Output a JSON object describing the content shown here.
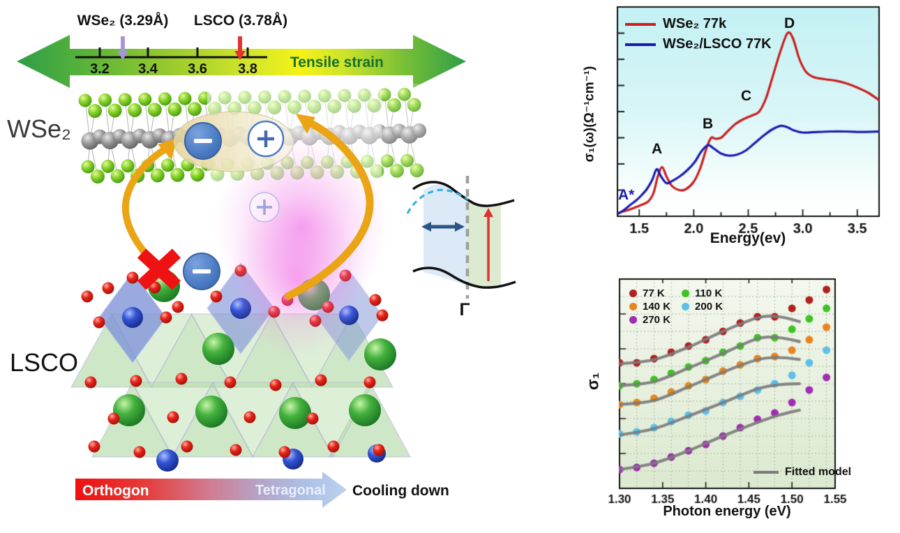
{
  "panel": {
    "strain_scale": {
      "wse2_label": "WSe₂  (3.29Å)",
      "lsco_label": "LSCO  (3.78Å)",
      "title": "Tensile strain",
      "tick_labels": [
        "3.2",
        "3.4",
        "3.6",
        "3.8"
      ],
      "tick_values": [
        3.2,
        3.4,
        3.6,
        3.8
      ],
      "wse2_value": 3.29,
      "lsco_value": 3.78,
      "title_color": "#15702a"
    },
    "materials": {
      "top": "WSe₂",
      "bottom": "LSCO"
    },
    "charges": {
      "minus": "−",
      "plus": "+"
    },
    "band_diagram": {
      "gamma": "Γ"
    },
    "phase_arrow": {
      "left": "Orthogon",
      "right": "Tetragonal",
      "caption": "Cooling down"
    }
  },
  "chart_data": [
    {
      "type": "line",
      "xlabel": "Energy(ev)",
      "ylabel": "σ₁(ω)(Ω⁻¹cm⁻¹)",
      "xlim": [
        1.3,
        3.7
      ],
      "ylim_note": "arbitrary units, normalized 0-1 of axis height; y axis unlabeled ticks",
      "x_ticks": [
        1.5,
        2.0,
        2.5,
        3.0,
        3.5
      ],
      "x_tick_labels": [
        "1.5",
        "2.0",
        "2.5",
        "3.0",
        "3.5"
      ],
      "grid": false,
      "legend_position": "top-left",
      "background": "cyan-to-white vertical gradient",
      "annotations": [
        {
          "text": "A*",
          "x": 1.42,
          "y": 0.12,
          "color": "#1c1cb0"
        },
        {
          "text": "A",
          "x": 1.66,
          "y": 0.3,
          "color": "#111111"
        },
        {
          "text": "B",
          "x": 2.15,
          "y": 0.43,
          "color": "#111111"
        },
        {
          "text": "C",
          "x": 2.52,
          "y": 0.56,
          "color": "#111111"
        },
        {
          "text": "D",
          "x": 2.87,
          "y": 0.94,
          "color": "#111111"
        }
      ],
      "series": [
        {
          "name": "WSe₂ 77k",
          "color": "#cc1f1f",
          "x": [
            1.3,
            1.4,
            1.5,
            1.58,
            1.63,
            1.67,
            1.71,
            1.75,
            1.8,
            1.87,
            1.93,
            2.0,
            2.06,
            2.12,
            2.16,
            2.2,
            2.25,
            2.3,
            2.38,
            2.46,
            2.55,
            2.6,
            2.66,
            2.72,
            2.79,
            2.86,
            2.91,
            2.97,
            3.03,
            3.1,
            3.2,
            3.3,
            3.4,
            3.5,
            3.6,
            3.7
          ],
          "y": [
            0.015,
            0.03,
            0.05,
            0.07,
            0.11,
            0.19,
            0.235,
            0.19,
            0.145,
            0.125,
            0.13,
            0.165,
            0.23,
            0.33,
            0.375,
            0.37,
            0.375,
            0.4,
            0.44,
            0.465,
            0.485,
            0.5,
            0.56,
            0.66,
            0.78,
            0.875,
            0.85,
            0.75,
            0.69,
            0.665,
            0.655,
            0.648,
            0.635,
            0.615,
            0.59,
            0.555
          ]
        },
        {
          "name": "WSe₂/LSCO 77K",
          "color": "#1c1cb0",
          "x": [
            1.3,
            1.36,
            1.42,
            1.47,
            1.52,
            1.57,
            1.62,
            1.66,
            1.7,
            1.75,
            1.8,
            1.87,
            1.94,
            2.01,
            2.07,
            2.13,
            2.18,
            2.25,
            2.32,
            2.4,
            2.48,
            2.56,
            2.64,
            2.72,
            2.8,
            2.86,
            2.92,
            3.0,
            3.1,
            3.25,
            3.4,
            3.55,
            3.7
          ],
          "y": [
            0.01,
            0.03,
            0.055,
            0.075,
            0.1,
            0.13,
            0.175,
            0.225,
            0.19,
            0.158,
            0.168,
            0.19,
            0.22,
            0.26,
            0.31,
            0.34,
            0.325,
            0.3,
            0.29,
            0.295,
            0.315,
            0.35,
            0.385,
            0.415,
            0.432,
            0.425,
            0.41,
            0.4,
            0.402,
            0.405,
            0.405,
            0.403,
            0.405
          ]
        }
      ]
    },
    {
      "type": "scatter",
      "xlabel": "Photon energy (eV)",
      "ylabel": "σ₁",
      "xlim": [
        1.3,
        1.55
      ],
      "ylim_note": "arbitrary units, normalized 0-1 of axis height; y axis unlabeled ticks",
      "x_ticks": [
        1.3,
        1.35,
        1.4,
        1.45,
        1.5,
        1.55
      ],
      "x_tick_labels": [
        "1.30",
        "1.35",
        "1.40",
        "1.45",
        "1.50",
        "1.55"
      ],
      "grid": true,
      "legend_position": "top-left",
      "background": "light green vertical gradient",
      "x_points": [
        1.3,
        1.32,
        1.34,
        1.36,
        1.38,
        1.4,
        1.42,
        1.44,
        1.46,
        1.48,
        1.5,
        1.52,
        1.54
      ],
      "series": [
        {
          "name": "77 K",
          "color": "#b22020",
          "y": [
            0.6,
            0.6,
            0.62,
            0.65,
            0.68,
            0.71,
            0.75,
            0.79,
            0.82,
            0.82,
            0.86,
            0.9,
            0.95
          ],
          "fit_x": [
            1.3,
            1.34,
            1.38,
            1.42,
            1.46,
            1.485,
            1.51
          ],
          "fit_y": [
            0.595,
            0.615,
            0.675,
            0.75,
            0.815,
            0.82,
            0.795
          ]
        },
        {
          "name": "140 K",
          "color": "#e8851c",
          "y": [
            0.4,
            0.41,
            0.43,
            0.46,
            0.49,
            0.52,
            0.56,
            0.59,
            0.62,
            0.63,
            0.66,
            0.71,
            0.77
          ],
          "fit_x": [
            1.3,
            1.34,
            1.38,
            1.42,
            1.46,
            1.485,
            1.51
          ],
          "fit_y": [
            0.4,
            0.42,
            0.485,
            0.555,
            0.615,
            0.625,
            0.615
          ]
        },
        {
          "name": "270 K",
          "color": "#a22cb4",
          "y": [
            0.09,
            0.1,
            0.12,
            0.15,
            0.18,
            0.21,
            0.25,
            0.29,
            0.33,
            0.36,
            0.41,
            0.47,
            0.53
          ],
          "fit_x": [
            1.3,
            1.34,
            1.38,
            1.42,
            1.46,
            1.485,
            1.51
          ],
          "fit_y": [
            0.09,
            0.12,
            0.18,
            0.25,
            0.315,
            0.35,
            0.375
          ]
        },
        {
          "name": "110 K",
          "color": "#3ec422",
          "y": [
            0.49,
            0.5,
            0.52,
            0.55,
            0.58,
            0.61,
            0.65,
            0.68,
            0.72,
            0.72,
            0.76,
            0.81,
            0.86
          ],
          "fit_x": [
            1.3,
            1.34,
            1.38,
            1.42,
            1.46,
            1.485,
            1.51
          ],
          "fit_y": [
            0.49,
            0.51,
            0.575,
            0.645,
            0.715,
            0.72,
            0.7
          ]
        },
        {
          "name": "200 K",
          "color": "#5cc0ea",
          "y": [
            0.26,
            0.27,
            0.29,
            0.32,
            0.35,
            0.37,
            0.41,
            0.44,
            0.47,
            0.5,
            0.54,
            0.6,
            0.66
          ],
          "fit_x": [
            1.3,
            1.34,
            1.38,
            1.42,
            1.46,
            1.485,
            1.51
          ],
          "fit_y": [
            0.255,
            0.285,
            0.345,
            0.41,
            0.475,
            0.495,
            0.5
          ]
        }
      ],
      "fit_legend": "Fitted model",
      "fit_color": "#7b7b7b"
    }
  ]
}
